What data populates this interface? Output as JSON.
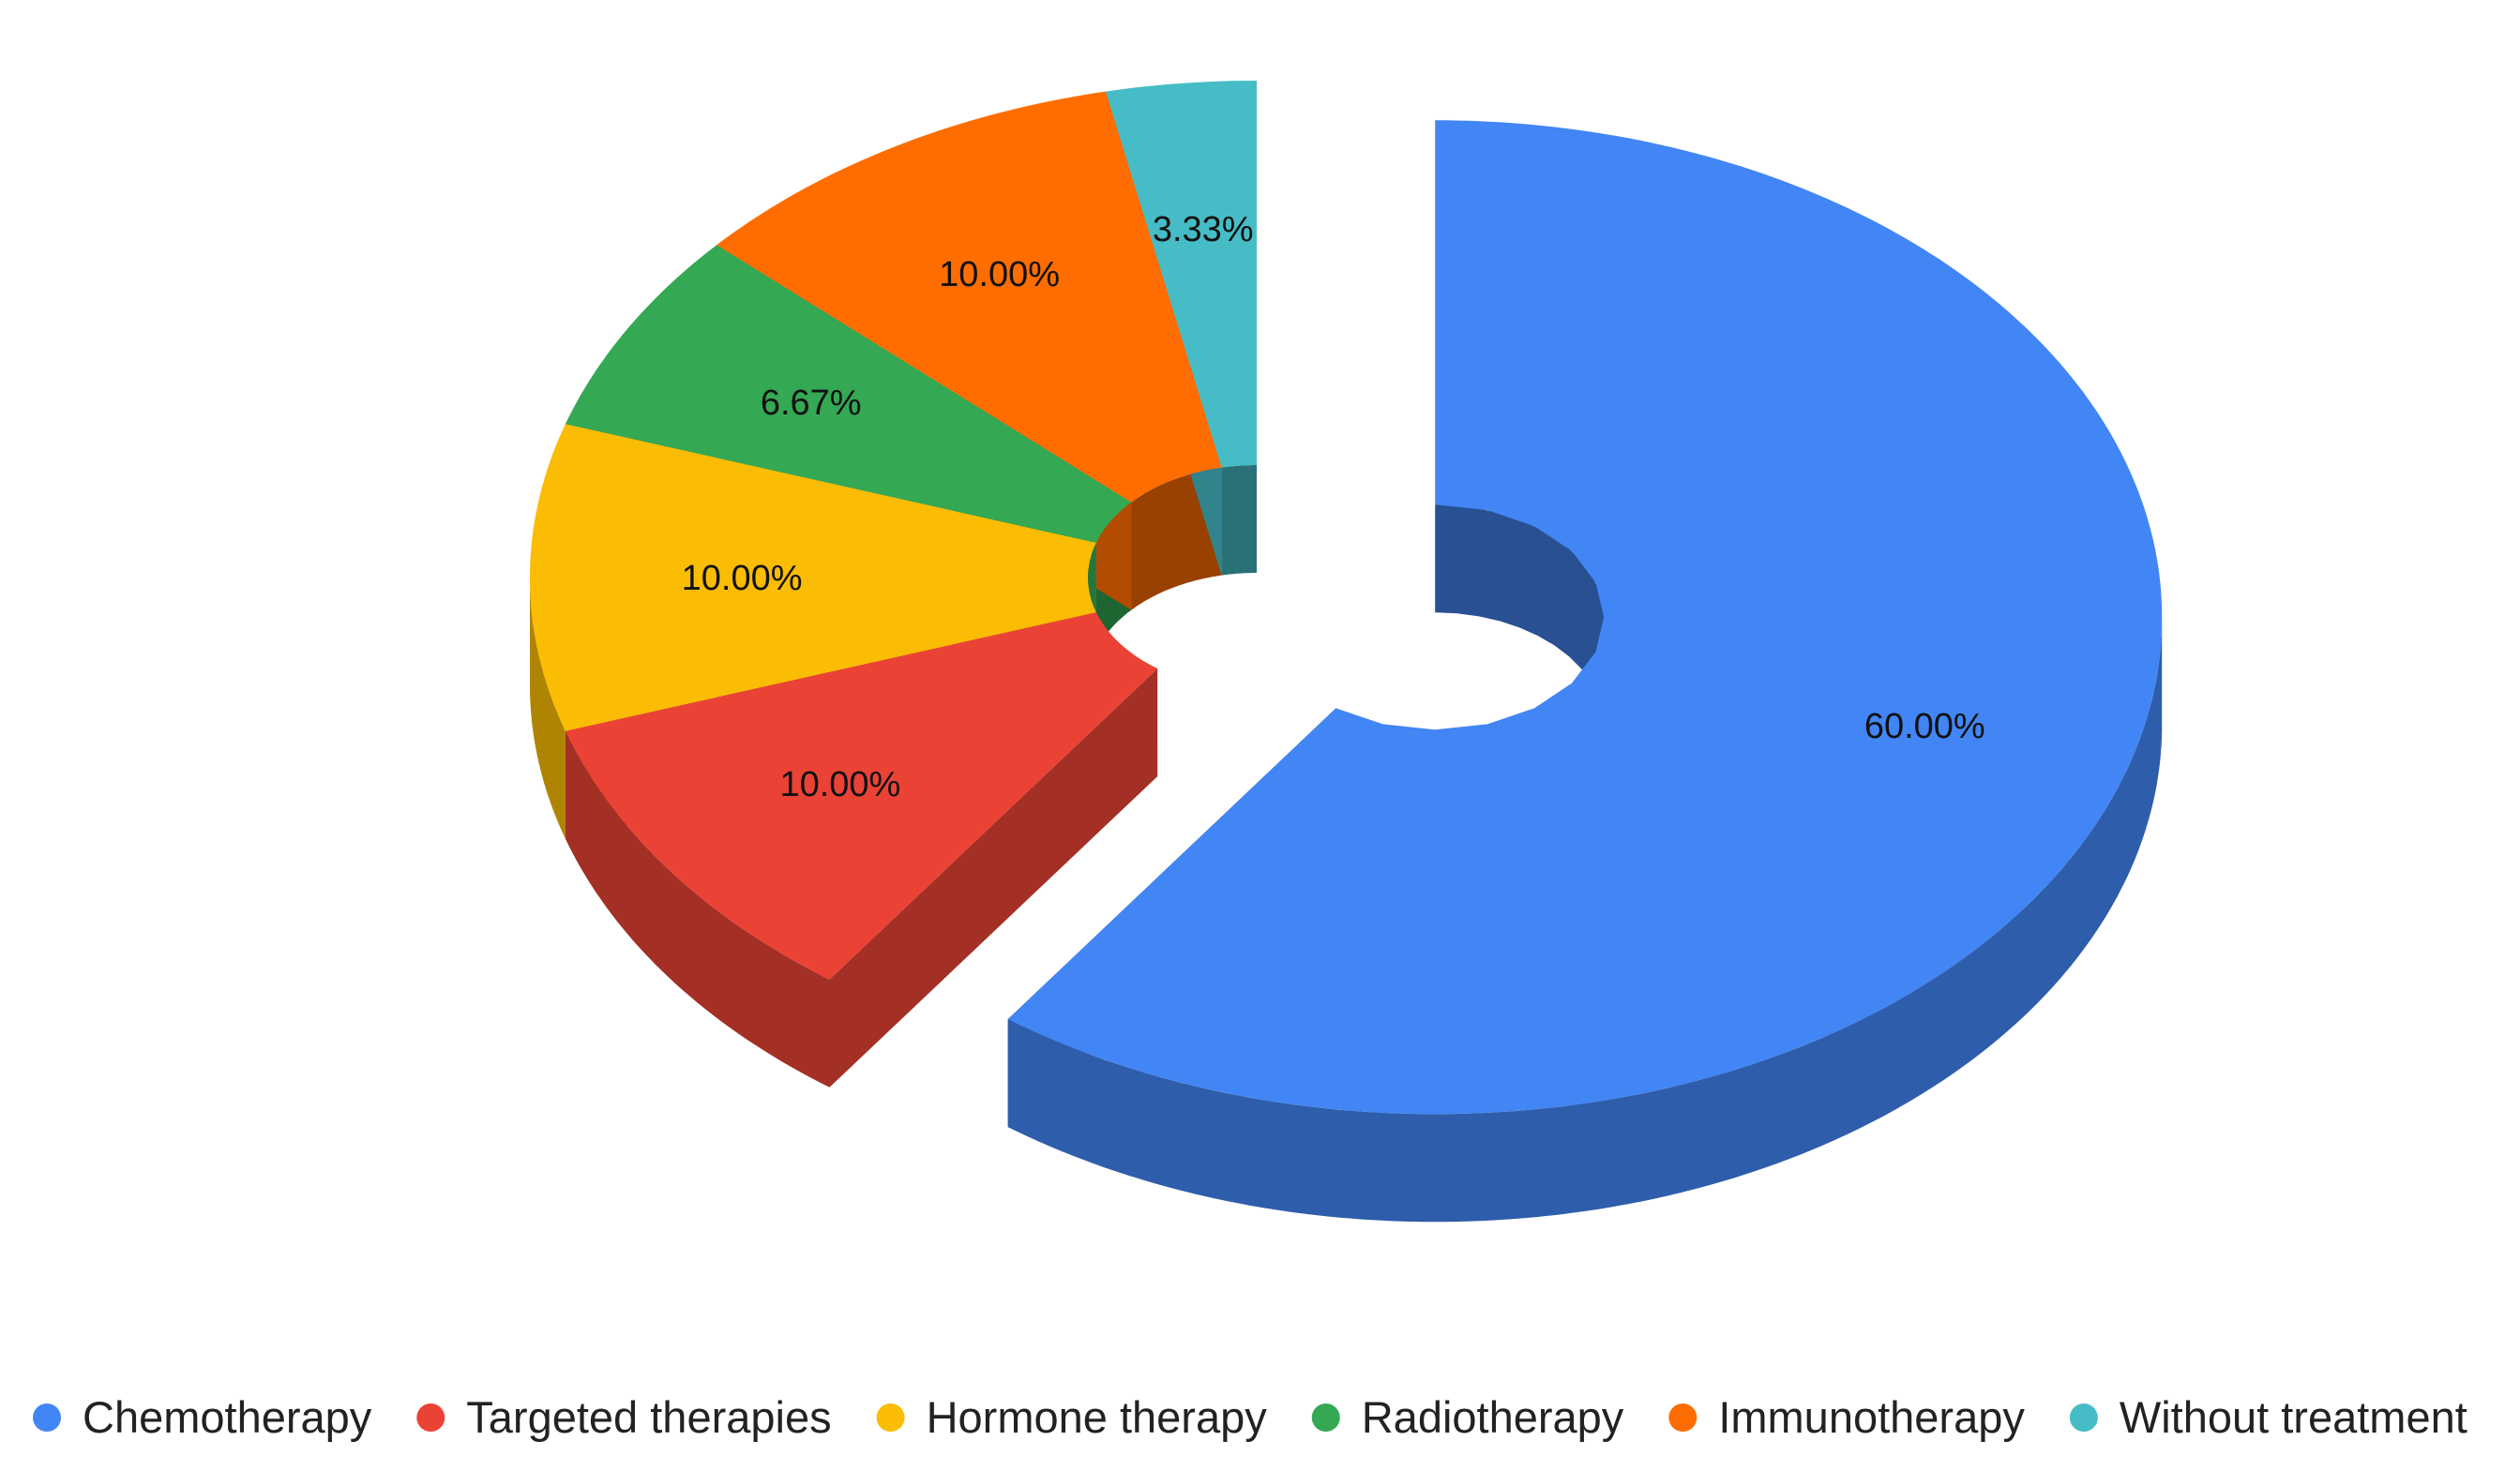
{
  "chart_data": {
    "type": "pie",
    "style": "3d-donut-exploded",
    "unit": "%",
    "legend_position": "bottom",
    "slices": [
      {
        "name": "Chemotherapy",
        "value": 60.0,
        "label": "60.00%",
        "color": "#4285F4",
        "exploded": true
      },
      {
        "name": "Targeted therapies",
        "value": 10.0,
        "label": "10.00%",
        "color": "#EA4335",
        "exploded": false
      },
      {
        "name": "Hormone therapy",
        "value": 10.0,
        "label": "10.00%",
        "color": "#FBBC04",
        "exploded": false
      },
      {
        "name": "Radiotherapy",
        "value": 6.67,
        "label": "6.67%",
        "color": "#34A853",
        "exploded": false
      },
      {
        "name": "Immunotherapy",
        "value": 10.0,
        "label": "10.00%",
        "color": "#FF6D01",
        "exploded": false
      },
      {
        "name": "Without treatment",
        "value": 3.33,
        "label": "3.33%",
        "color": "#46BDC6",
        "exploded": false
      }
    ]
  }
}
